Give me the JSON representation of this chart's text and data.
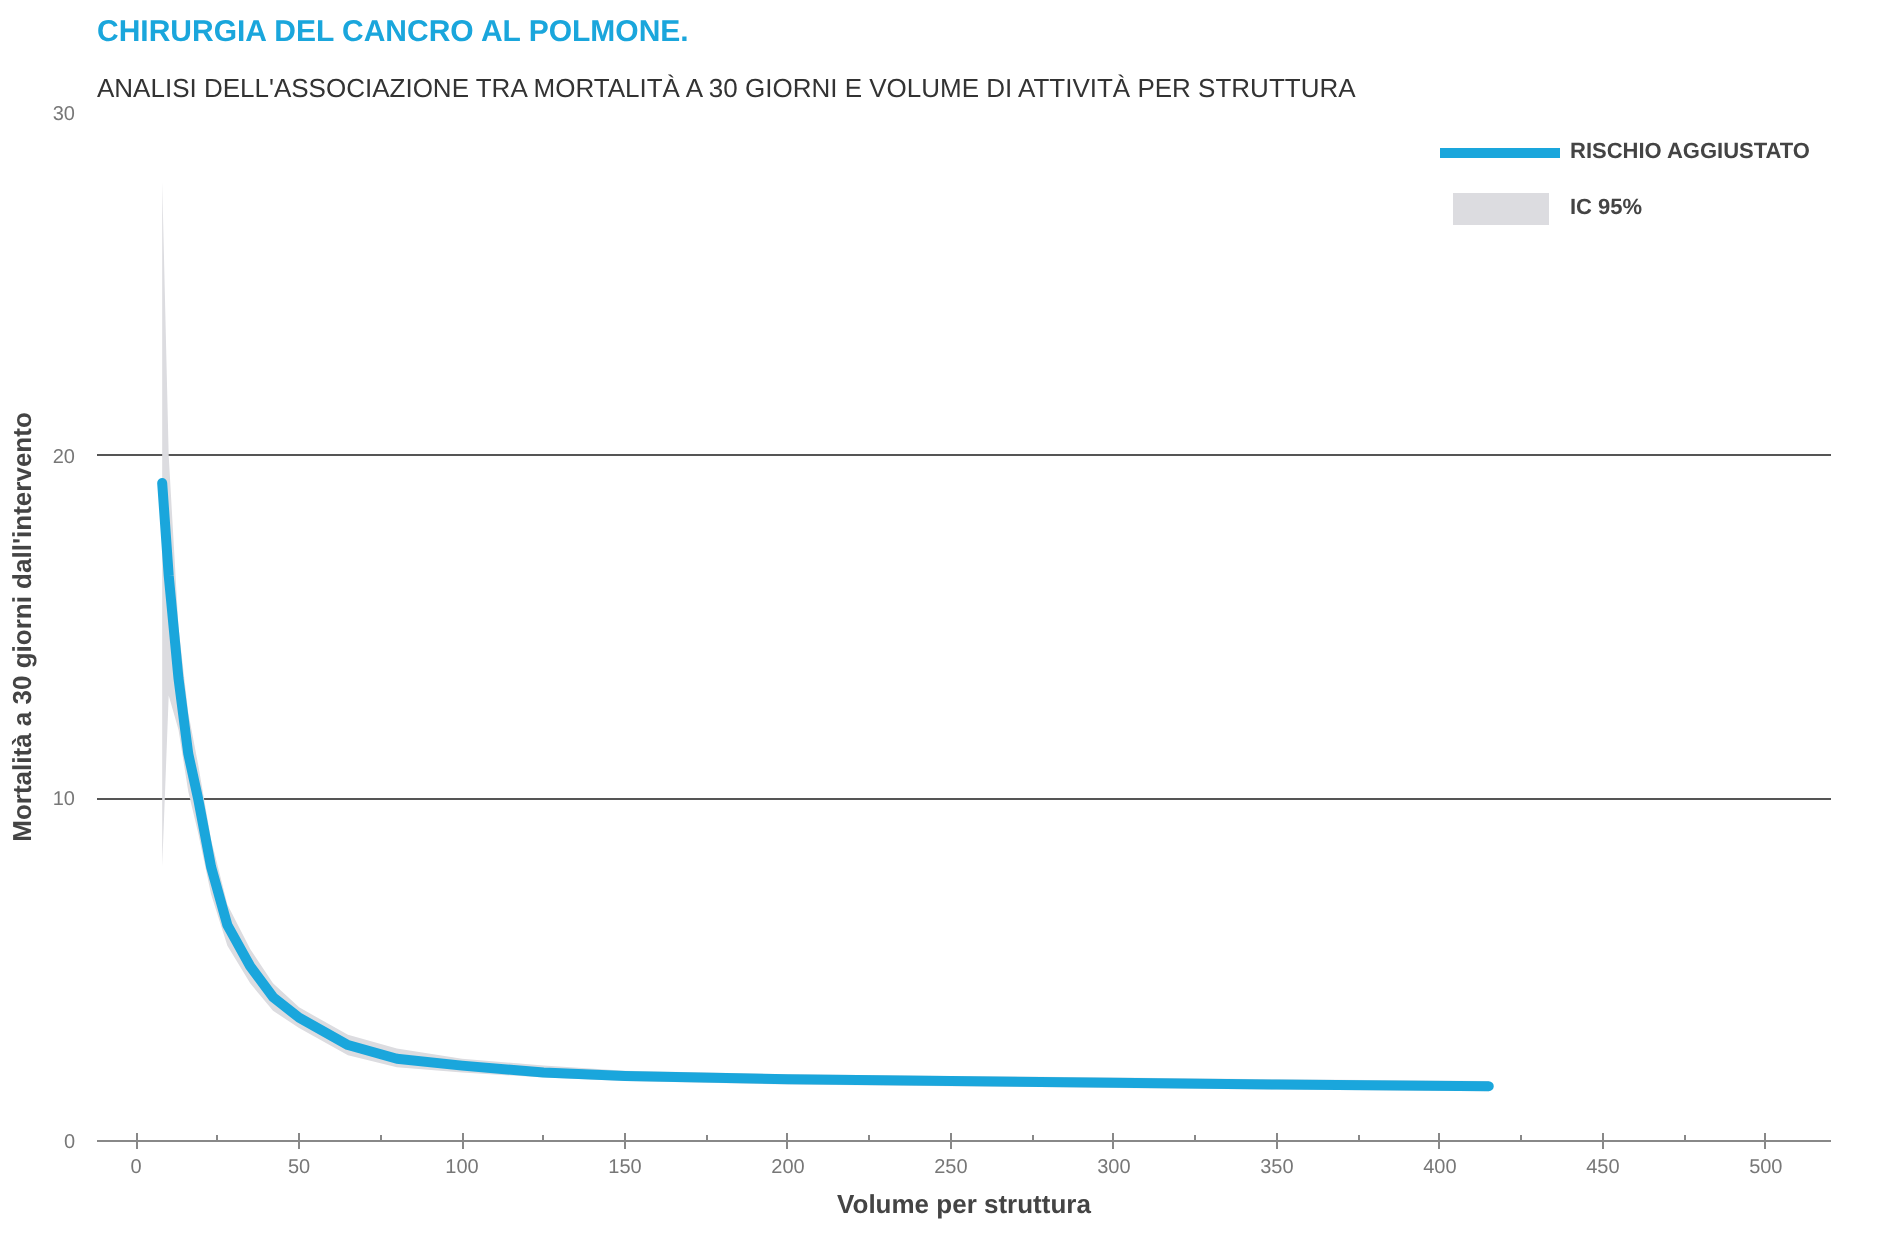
{
  "chart_data": {
    "type": "line",
    "title": "CHIRURGIA DEL CANCRO AL POLMONE.",
    "subtitle": "ANALISI DELL'ASSOCIAZIONE TRA MORTALITÀ A 30 GIORNI E VOLUME DI ATTIVITÀ PER STRUTTURA",
    "xlabel": "Volume per struttura",
    "ylabel": "Mortalità a 30 giorni dall'intervento",
    "x": [
      8,
      10,
      13,
      16,
      19,
      23,
      28,
      35,
      42,
      50,
      65,
      80,
      100,
      125,
      150,
      200,
      250,
      300,
      350,
      415
    ],
    "series": [
      {
        "name": "RISCHIO AGGIUSTATO",
        "color": "#1aa6dc",
        "values": [
          19.2,
          16.5,
          13.5,
          11.3,
          10,
          8,
          6.3,
          5.1,
          4.2,
          3.6,
          2.8,
          2.4,
          2.2,
          2.0,
          1.9,
          1.8,
          1.75,
          1.7,
          1.65,
          1.6
        ],
        "upper": [
          28,
          20,
          15,
          12.5,
          11,
          8.8,
          6.9,
          5.6,
          4.6,
          3.9,
          3.1,
          2.7,
          2.4,
          2.2,
          2.05,
          1.95,
          1.9,
          1.85,
          1.8,
          1.75
        ],
        "lower": [
          8,
          13,
          12,
          10.2,
          9,
          7.2,
          5.7,
          4.6,
          3.8,
          3.3,
          2.5,
          2.15,
          2.0,
          1.85,
          1.75,
          1.65,
          1.6,
          1.55,
          1.5,
          1.45
        ]
      },
      {
        "name": "IC 95%",
        "color": "#dcdce0",
        "type": "area",
        "values": [
          null,
          null,
          null,
          null,
          null,
          null,
          null,
          null,
          null,
          null,
          null,
          null,
          null,
          null,
          null,
          null,
          null,
          null,
          null,
          null
        ]
      }
    ],
    "xlim": [
      -12,
      520
    ],
    "ylim": [
      0,
      30
    ],
    "xticks": [
      0,
      {
        "value": 25,
        "label": null
      },
      50,
      {
        "value": 75,
        "label": null
      },
      100,
      {
        "value": 125,
        "label": null
      },
      150,
      {
        "value": 175,
        "label": null
      },
      200,
      {
        "value": 225,
        "label": null
      },
      250,
      {
        "value": 275,
        "label": null
      },
      300,
      {
        "value": 325,
        "label": null
      },
      350,
      {
        "value": 375,
        "label": null
      },
      400,
      {
        "value": 425,
        "label": null
      },
      450,
      {
        "value": 475,
        "label": null
      },
      500
    ],
    "yticks": [
      0,
      10,
      20,
      30
    ],
    "grid": "y",
    "legend": "top right",
    "line_style": "solid",
    "marker": "none"
  }
}
